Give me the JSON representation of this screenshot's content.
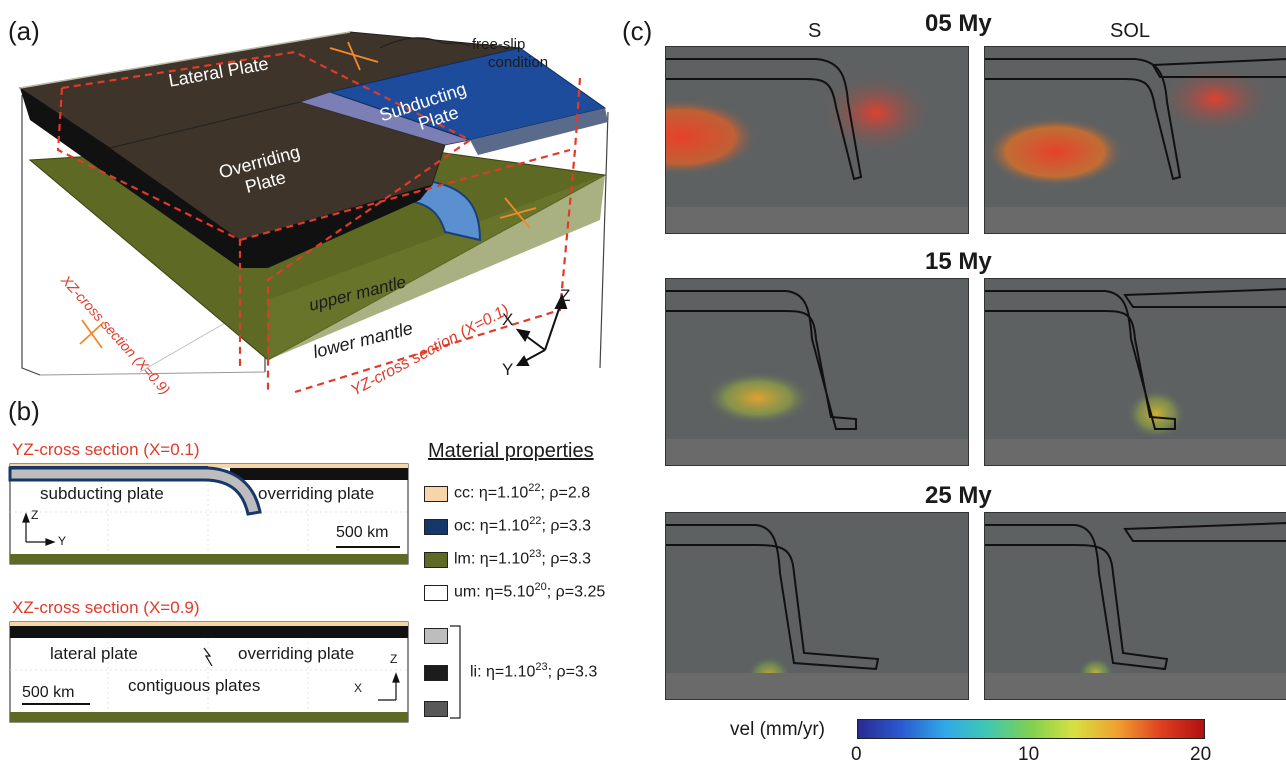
{
  "figure": {
    "a": {
      "label": "(a)",
      "free_slip": [
        "free-slip",
        "condition"
      ],
      "lateral_plate": "Lateral Plate",
      "overriding_plate": [
        "Overriding",
        "Plate"
      ],
      "subducting_plate": [
        "Subducting",
        "Plate"
      ],
      "upper_mantle": "upper mantle",
      "lower_mantle": "lower mantle",
      "xz_section": "XZ-cross section (X=0.9)",
      "yz_section": "YZ-cross section (X=0.1)",
      "axes": {
        "x": "X",
        "y": "Y",
        "z": "Z"
      }
    },
    "b": {
      "label": "(b)",
      "yz_title": "YZ-cross section (X=0.1)",
      "subducting_plate": "subducting plate",
      "overriding_plate": "overriding plate",
      "scale_yz": "500 km",
      "axis_z": "Z",
      "axis_y": "Y",
      "xz_title": "XZ-cross section (X=0.9)",
      "lateral_plate": "lateral plate",
      "overriding_plate_2": "overriding plate",
      "contiguous": "contiguous plates",
      "scale_xz": "500 km",
      "axis_z2": "Z",
      "axis_x": "X",
      "material_title": "Material properties",
      "materials": [
        {
          "code": "cc",
          "eta_base": "η=1.10",
          "eta_exp": "22",
          "rho": "; ρ=2.8",
          "color": "#f6d6a8"
        },
        {
          "code": "oc",
          "eta_base": "η=1.10",
          "eta_exp": "22",
          "rho": "; ρ=3.3",
          "color": "#16376a"
        },
        {
          "code": "lm",
          "eta_base": "η=1.10",
          "eta_exp": "23",
          "rho": "; ρ=3.3",
          "color": "#5e6a24"
        },
        {
          "code": "um",
          "eta_base": "η=5.10",
          "eta_exp": "20",
          "rho": "; ρ=3.25",
          "color": "#ffffff"
        }
      ],
      "li": {
        "code": "li",
        "eta_base": "η=1.10",
        "eta_exp": "23",
        "rho": "; ρ=3.3",
        "colors": [
          "#bdbdbd",
          "#1c1c1c",
          "#585858"
        ]
      }
    },
    "c": {
      "label": "(c)",
      "col_s": "S",
      "col_sol": "SOL",
      "times": [
        "05 My",
        "15 My",
        "25 My"
      ],
      "colorbar": {
        "label": "vel (mm/yr)",
        "ticks": [
          "0",
          "10",
          "20"
        ],
        "min": 0,
        "max": 20
      }
    }
  }
}
